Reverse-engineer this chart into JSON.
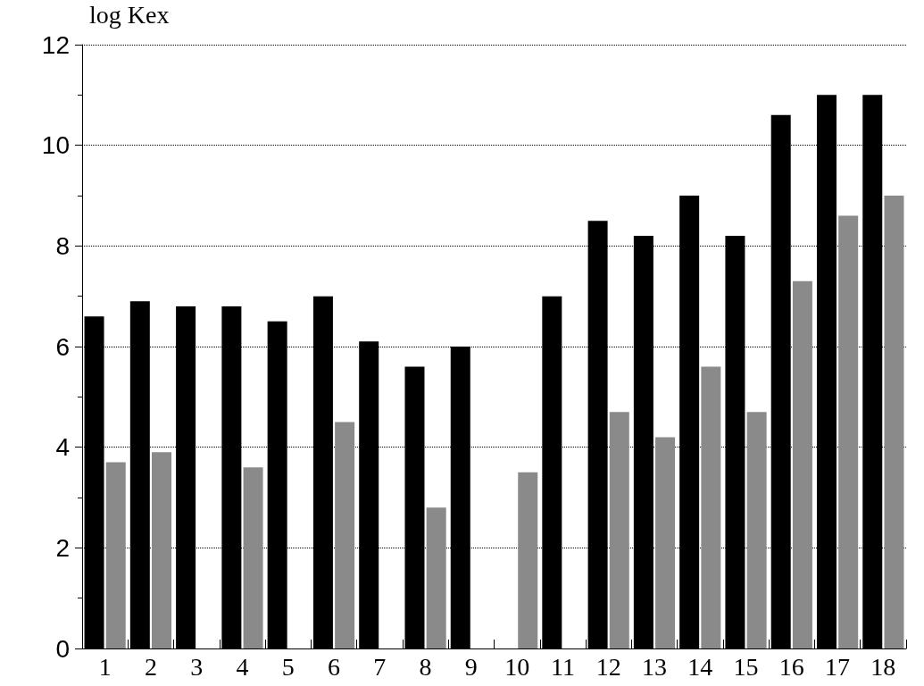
{
  "chart_data": {
    "type": "bar",
    "ylabel": "log Kex",
    "categories": [
      "1",
      "2",
      "3",
      "4",
      "5",
      "6",
      "7",
      "8",
      "9",
      "10",
      "11",
      "12",
      "13",
      "14",
      "15",
      "16",
      "17",
      "18"
    ],
    "series": [
      {
        "color": "#000000",
        "values": [
          6.6,
          6.9,
          6.8,
          6.8,
          6.5,
          7.0,
          6.1,
          5.6,
          6.0,
          null,
          7.0,
          8.5,
          8.2,
          9.0,
          8.2,
          10.6,
          11.0,
          11.0
        ]
      },
      {
        "color": "#8a8a8a",
        "values": [
          3.7,
          3.9,
          null,
          3.6,
          null,
          4.5,
          null,
          2.8,
          null,
          3.5,
          null,
          4.7,
          4.2,
          5.6,
          4.7,
          7.3,
          8.6,
          9.0
        ]
      }
    ],
    "ylim": [
      0,
      12
    ],
    "yticks": [
      0,
      2,
      4,
      6,
      8,
      10,
      12
    ],
    "grid": "y"
  }
}
